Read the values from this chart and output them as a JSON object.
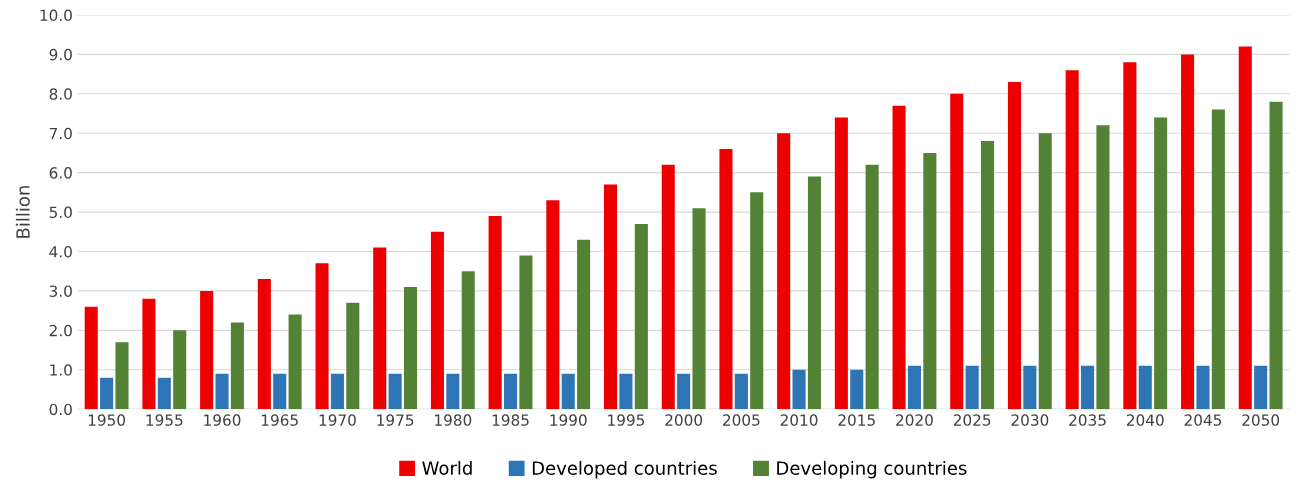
{
  "chart_data": {
    "type": "bar",
    "ylabel": "Billion",
    "categories": [
      "1950",
      "1955",
      "1960",
      "1965",
      "1970",
      "1975",
      "1980",
      "1985",
      "1990",
      "1995",
      "2000",
      "2005",
      "2010",
      "2015",
      "2020",
      "2025",
      "2030",
      "2035",
      "2040",
      "2045",
      "2050"
    ],
    "series": [
      {
        "name": "World",
        "color": "#ee0000",
        "values": [
          2.6,
          2.8,
          3.0,
          3.3,
          3.7,
          4.1,
          4.5,
          4.9,
          5.3,
          5.7,
          6.2,
          6.6,
          7.0,
          7.4,
          7.7,
          8.0,
          8.3,
          8.6,
          8.8,
          9.0,
          9.2
        ]
      },
      {
        "name": "Developed countries",
        "color": "#2e75b6",
        "values": [
          0.8,
          0.8,
          0.9,
          0.9,
          0.9,
          0.9,
          0.9,
          0.9,
          0.9,
          0.9,
          0.9,
          0.9,
          1.0,
          1.0,
          1.1,
          1.1,
          1.1,
          1.1,
          1.1,
          1.1,
          1.1
        ]
      },
      {
        "name": "Developing countries",
        "color": "#548235",
        "values": [
          1.7,
          2.0,
          2.2,
          2.4,
          2.7,
          3.1,
          3.5,
          3.9,
          4.3,
          4.7,
          5.1,
          5.5,
          5.9,
          6.2,
          6.5,
          6.8,
          7.0,
          7.2,
          7.4,
          7.6,
          7.8
        ]
      }
    ],
    "ylim": [
      0,
      10
    ],
    "yticks": [
      {
        "value": 0,
        "label": "0.0"
      },
      {
        "value": 1,
        "label": "1.0"
      },
      {
        "value": 2,
        "label": "2.0"
      },
      {
        "value": 3,
        "label": "3.0"
      },
      {
        "value": 4,
        "label": "4.0"
      },
      {
        "value": 5,
        "label": "5.0"
      },
      {
        "value": 6,
        "label": "6.0"
      },
      {
        "value": 7,
        "label": "7.0"
      },
      {
        "value": 8,
        "label": "8.0"
      },
      {
        "value": 9,
        "label": "9.0"
      },
      {
        "value": 10,
        "label": "10.0"
      }
    ],
    "grid": "y",
    "legend": "bottom"
  }
}
